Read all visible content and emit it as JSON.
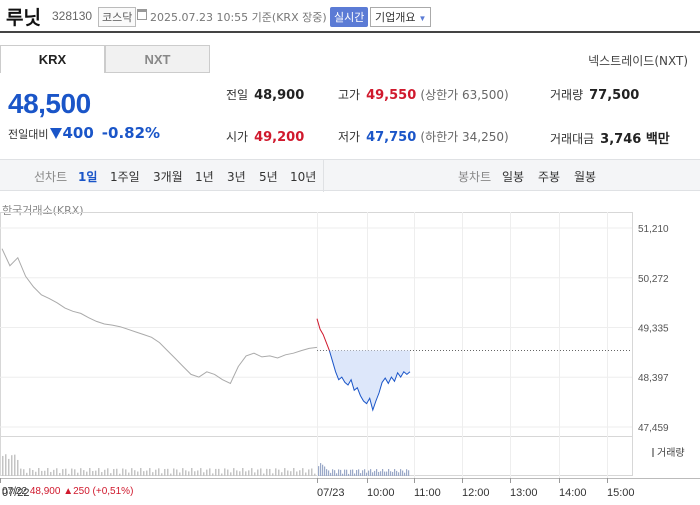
{
  "header": {
    "stock_name": "루닛",
    "stock_code": "328130",
    "market": "코스닥",
    "datetime": "2025.07.23 10:55 기준(KRX 장중)",
    "realtime_badge": "실시간",
    "company_overview": "기업개요"
  },
  "tabs": [
    {
      "label": "KRX",
      "selected": true
    },
    {
      "label": "NXT",
      "selected": false
    }
  ],
  "nxt_link": "넥스트레이드(NXT)",
  "quote": {
    "price": "48,500",
    "change_label": "전일대비",
    "change_amount": "400",
    "change_pct": "-0.82%"
  },
  "stats": {
    "prev_close": {
      "label": "전일",
      "value": "48,900"
    },
    "high": {
      "label": "고가",
      "value": "49,550",
      "sub": "(상한가 63,500)"
    },
    "volume": {
      "label": "거래량",
      "value": "77,500"
    },
    "open": {
      "label": "시가",
      "value": "49,200"
    },
    "low": {
      "label": "저가",
      "value": "47,750",
      "sub": "(하한가 34,250)"
    },
    "trade_value": {
      "label": "거래대금",
      "value": "3,746 백만"
    }
  },
  "toolbar": {
    "line_chart_label": "선차트",
    "periods": [
      "1일",
      "1주일",
      "3개월",
      "1년",
      "3년",
      "5년",
      "10년"
    ],
    "selected_period": "1일",
    "candle_chart_label": "봉차트",
    "candle_periods": [
      "일봉",
      "주봉",
      "월봉"
    ]
  },
  "exchange_label": "한국거래소(KRX)",
  "volume_label": "거래량",
  "footer": {
    "prev_date": "07/22",
    "prev_price": "48,900",
    "prev_change": "▲250 (+0,51%)"
  },
  "chart_data": {
    "type": "line",
    "y_ticks": [
      "51,210",
      "50,272",
      "49,335",
      "48,397",
      "47,459"
    ],
    "y_values": [
      51210,
      50272,
      49335,
      48397,
      47459
    ],
    "x_ticks": [
      "07/22",
      "07/23",
      "10:00",
      "11:00",
      "12:00",
      "13:00",
      "14:00",
      "15:00"
    ],
    "reference_price": 48900,
    "prev_day_series": [
      50820,
      50500,
      50650,
      50300,
      50100,
      49950,
      49880,
      49800,
      49700,
      49640,
      49600,
      49520,
      49450,
      49400,
      49380,
      49350,
      49300,
      49250,
      49200,
      49150,
      49050,
      48900,
      48750,
      48600,
      48450,
      48400,
      48500,
      48450,
      48350,
      48280,
      48600,
      48800,
      48850,
      48780,
      48800,
      48760,
      48820,
      48850,
      48900,
      48940,
      48960
    ],
    "today_series": [
      49500,
      49300,
      49200,
      49050,
      48900,
      48700,
      48500,
      48350,
      48400,
      48300,
      48250,
      48350,
      48150,
      48200,
      48050,
      47950,
      47900,
      48000,
      47780,
      47950,
      48100,
      48300,
      48380,
      48280,
      48400,
      48320,
      48480,
      48400,
      48500,
      48450,
      48500
    ],
    "colors": {
      "up": "#d0192d",
      "down": "#1a55c8",
      "prev": "#aaaaaa",
      "fill": "#dde7fa"
    }
  }
}
